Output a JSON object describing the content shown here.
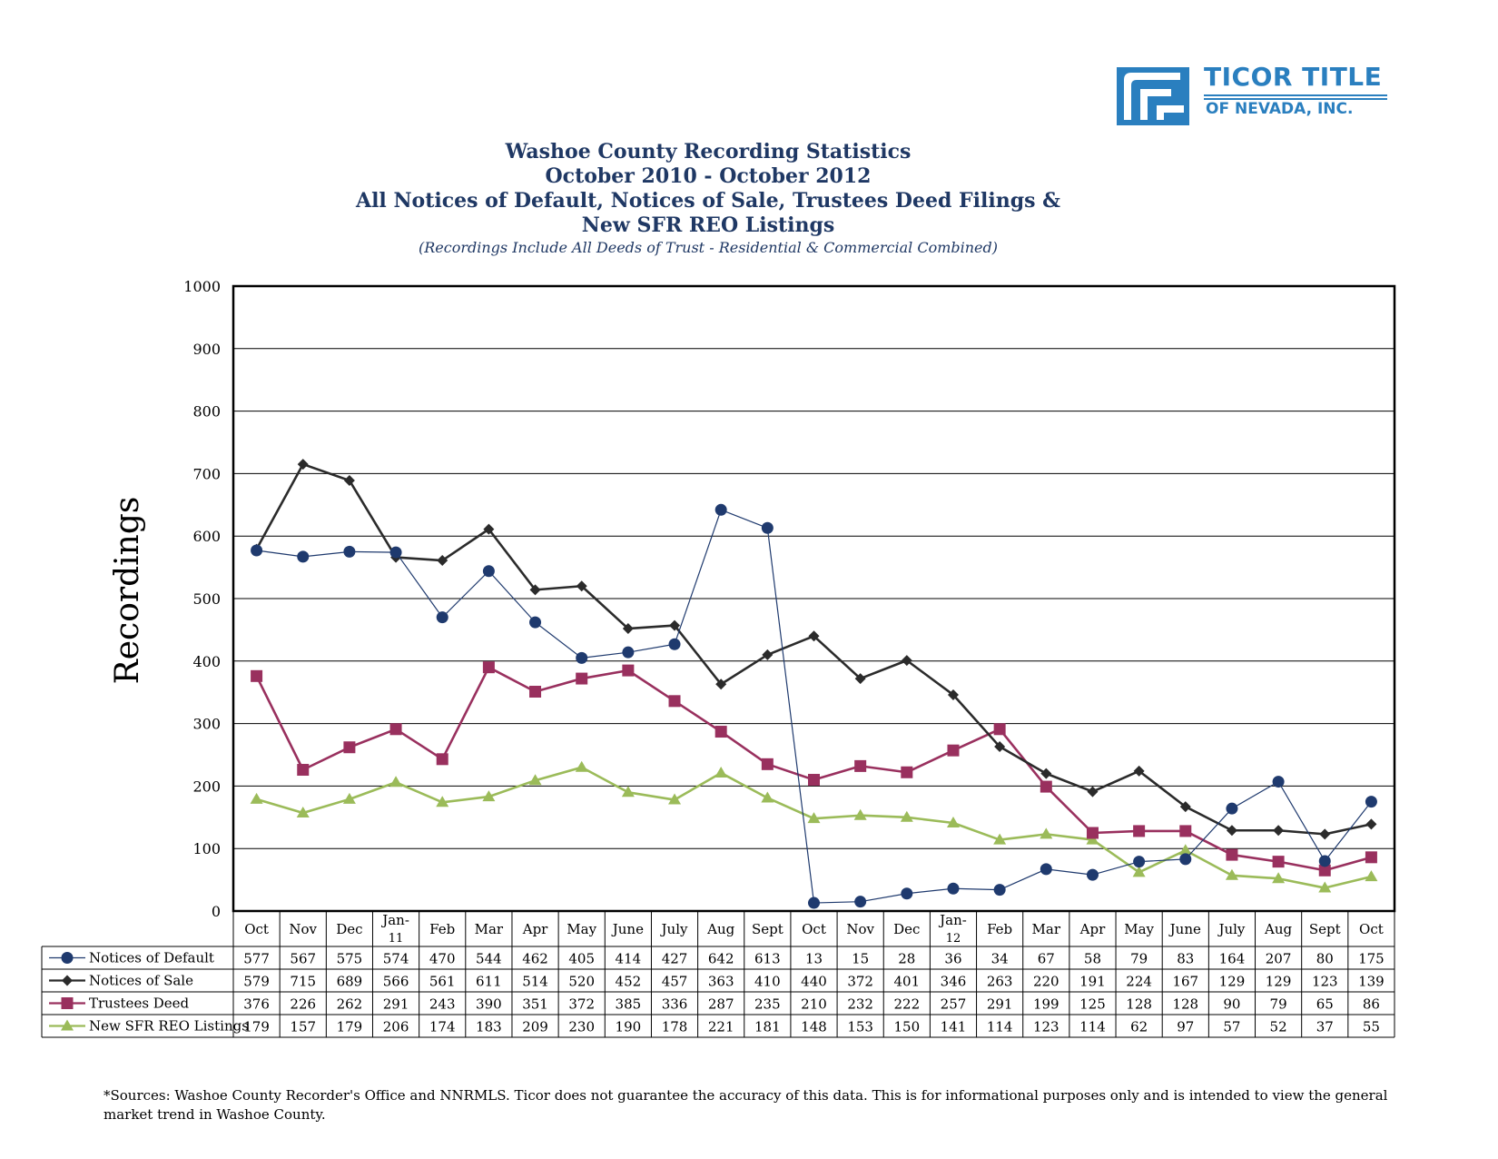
{
  "logo": {
    "name": "TICOR TITLE",
    "sub": "OF NEVADA, INC.",
    "brand_color": "#2a7fbf"
  },
  "titles": {
    "line1": "Washoe County Recording Statistics",
    "line2": "October 2010 - October 2012",
    "line3": "All Notices of Default, Notices of Sale, Trustees Deed Filings &",
    "line4": "New SFR REO Listings",
    "subtitle": "(Recordings Include All Deeds of Trust - Residential & Commercial Combined)"
  },
  "footnote": "*Sources:  Washoe County Recorder's Office and NNRMLS. Ticor does not guarantee the accuracy of this data.  This is for informational purposes only and is intended to view the general market trend in Washoe County.",
  "chart_data": {
    "type": "line",
    "ylabel": "Recordings",
    "ylim": [
      0,
      1000
    ],
    "yticks": [
      0,
      100,
      200,
      300,
      400,
      500,
      600,
      700,
      800,
      900,
      1000
    ],
    "grid": true,
    "legend": "data-table-left",
    "categories": [
      "Oct",
      "Nov",
      "Dec",
      "Jan-11",
      "Feb",
      "Mar",
      "Apr",
      "May",
      "June",
      "July",
      "Aug",
      "Sept",
      "Oct",
      "Nov",
      "Dec",
      "Jan-12",
      "Feb",
      "Mar",
      "Apr",
      "May",
      "June",
      "July",
      "Aug",
      "Sept",
      "Oct"
    ],
    "category_display": [
      [
        "Oct"
      ],
      [
        "Nov"
      ],
      [
        "Dec"
      ],
      [
        "Jan-",
        "11"
      ],
      [
        "Feb"
      ],
      [
        "Mar"
      ],
      [
        "Apr"
      ],
      [
        "May"
      ],
      [
        "June"
      ],
      [
        "July"
      ],
      [
        "Aug"
      ],
      [
        "Sept"
      ],
      [
        "Oct"
      ],
      [
        "Nov"
      ],
      [
        "Dec"
      ],
      [
        "Jan-",
        "12"
      ],
      [
        "Feb"
      ],
      [
        "Mar"
      ],
      [
        "Apr"
      ],
      [
        "May"
      ],
      [
        "June"
      ],
      [
        "July"
      ],
      [
        "Aug"
      ],
      [
        "Sept"
      ],
      [
        "Oct"
      ]
    ],
    "series": [
      {
        "name": "Notices of Default",
        "color": "#1f3a6e",
        "marker": "circle",
        "line": "thin",
        "values": [
          577,
          567,
          575,
          574,
          470,
          544,
          462,
          405,
          414,
          427,
          642,
          613,
          13,
          15,
          28,
          36,
          34,
          67,
          58,
          79,
          83,
          164,
          207,
          80,
          175
        ]
      },
      {
        "name": "Notices of Sale",
        "color": "#2b2b2b",
        "marker": "diamond",
        "line": "thick",
        "values": [
          579,
          715,
          689,
          566,
          561,
          611,
          514,
          520,
          452,
          457,
          363,
          410,
          440,
          372,
          401,
          346,
          263,
          220,
          191,
          224,
          167,
          129,
          129,
          123,
          139
        ]
      },
      {
        "name": "Trustees Deed",
        "color": "#99305e",
        "marker": "square",
        "line": "thick",
        "values": [
          376,
          226,
          262,
          291,
          243,
          390,
          351,
          372,
          385,
          336,
          287,
          235,
          210,
          232,
          222,
          257,
          291,
          199,
          125,
          128,
          128,
          90,
          79,
          65,
          86
        ]
      },
      {
        "name": "New SFR REO Listings",
        "color": "#9bbb59",
        "marker": "triangle",
        "line": "thick",
        "values": [
          179,
          157,
          179,
          206,
          174,
          183,
          209,
          230,
          190,
          178,
          221,
          181,
          148,
          153,
          150,
          141,
          114,
          123,
          114,
          62,
          97,
          57,
          52,
          37,
          55
        ]
      }
    ]
  }
}
